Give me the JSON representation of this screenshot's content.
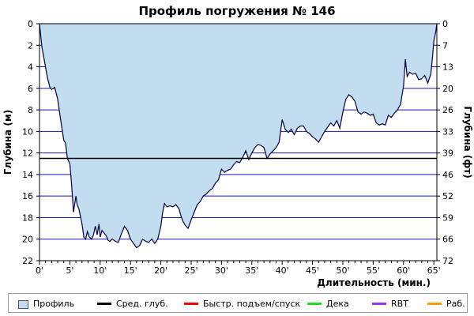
{
  "chart_data": {
    "type": "area",
    "title": "Профиль погружения № 146",
    "xlabel": "Длительность (мин.)",
    "ylabel_left": "Глубина (м)",
    "ylabel_right": "Глубина (фт)",
    "xlim": [
      0,
      65.5
    ],
    "ylim": [
      0,
      22
    ],
    "y_inverted": true,
    "x_ticks": [
      "0'",
      "5'",
      "10'",
      "15'",
      "20'",
      "25'",
      "30'",
      "35'",
      "40'",
      "45'",
      "50'",
      "55'",
      "60'",
      "65'"
    ],
    "x_tick_values": [
      0,
      5,
      10,
      15,
      20,
      25,
      30,
      35,
      40,
      45,
      50,
      55,
      60,
      65
    ],
    "y_ticks_left": [
      "0",
      "2",
      "4",
      "6",
      "8",
      "10",
      "12",
      "14",
      "16",
      "18",
      "20",
      "22"
    ],
    "y_tick_values_left": [
      0,
      2,
      4,
      6,
      8,
      10,
      12,
      14,
      16,
      18,
      20,
      22
    ],
    "y_ticks_right": [
      "0",
      "7",
      "13",
      "20",
      "26",
      "33",
      "39",
      "46",
      "52",
      "59",
      "66",
      "72"
    ],
    "grid": true,
    "fill_color": "#c1ddef",
    "line_color": "#000040",
    "grid_color": "#1515c0",
    "avg_depth": 12.5,
    "avg_depth_color": "#000000",
    "profile": {
      "x": [
        0,
        0.4,
        0.8,
        1.3,
        1.7,
        2.0,
        2.5,
        3.0,
        3.5,
        4.0,
        4.3,
        4.6,
        5.0,
        5.3,
        5.6,
        6.0,
        6.2,
        6.5,
        7.0,
        7.3,
        7.6,
        7.9,
        8.2,
        8.6,
        8.9,
        9.2,
        9.5,
        9.8,
        10.0,
        10.3,
        10.6,
        11.0,
        11.3,
        11.6,
        12.0,
        12.5,
        13.0,
        13.5,
        14.0,
        14.5,
        15.0,
        15.5,
        16.0,
        16.5,
        17.0,
        17.5,
        18.0,
        18.5,
        19.0,
        19.5,
        20.0,
        20.3,
        20.6,
        21.0,
        21.5,
        22.0,
        22.5,
        23.0,
        23.3,
        23.6,
        24.0,
        24.5,
        25.0,
        25.5,
        26.0,
        26.5,
        27.0,
        27.5,
        28.0,
        28.5,
        29.0,
        29.5,
        30.0,
        30.5,
        31.0,
        31.5,
        32.0,
        32.5,
        33.0,
        33.5,
        34.0,
        34.5,
        35.0,
        35.5,
        36.0,
        36.5,
        37.0,
        37.5,
        38.0,
        38.5,
        39.0,
        39.5,
        40.0,
        40.5,
        41.0,
        41.5,
        42.0,
        42.5,
        43.0,
        43.5,
        44.0,
        44.5,
        45.0,
        45.5,
        46.0,
        46.5,
        47.0,
        47.5,
        48.0,
        48.5,
        49.0,
        49.5,
        50.0,
        50.5,
        51.0,
        51.5,
        52.0,
        52.5,
        53.0,
        53.5,
        54.0,
        54.5,
        55.0,
        55.5,
        56.0,
        56.5,
        57.0,
        57.5,
        58.0,
        58.5,
        59.0,
        59.5,
        60.0,
        60.3,
        60.6,
        61.0,
        61.5,
        62.0,
        62.5,
        63.0,
        63.5,
        64.0,
        64.5,
        64.8,
        65.0,
        65.3,
        65.5
      ],
      "y": [
        0,
        2.2,
        3.4,
        5.0,
        5.9,
        6.1,
        5.9,
        7.0,
        9.0,
        10.8,
        11.1,
        12.5,
        13.0,
        15.0,
        17.5,
        16.0,
        16.8,
        17.2,
        18.6,
        19.8,
        20.0,
        19.3,
        19.8,
        20.0,
        19.6,
        18.8,
        19.6,
        18.6,
        19.8,
        19.2,
        19.4,
        19.7,
        20.1,
        20.2,
        20.0,
        20.2,
        20.3,
        19.5,
        18.8,
        19.2,
        20.0,
        20.4,
        20.8,
        20.6,
        20.0,
        20.2,
        20.3,
        20.0,
        20.4,
        20.0,
        18.8,
        17.5,
        16.7,
        17.0,
        16.9,
        17.0,
        16.8,
        17.2,
        17.8,
        18.3,
        18.7,
        19.0,
        18.2,
        17.5,
        16.8,
        16.5,
        16.0,
        15.8,
        15.5,
        15.3,
        14.8,
        14.5,
        13.5,
        13.8,
        13.6,
        13.5,
        13.1,
        12.8,
        12.9,
        12.4,
        11.8,
        12.6,
        12.0,
        11.5,
        11.2,
        11.3,
        11.5,
        12.5,
        12.1,
        11.8,
        11.5,
        11.0,
        8.9,
        9.8,
        10.1,
        9.8,
        10.3,
        9.7,
        9.5,
        9.5,
        10.0,
        10.2,
        10.5,
        10.7,
        11.0,
        10.5,
        10.0,
        9.6,
        9.2,
        9.5,
        9.0,
        9.7,
        8.2,
        7.0,
        6.6,
        6.8,
        7.2,
        8.2,
        8.4,
        8.2,
        8.3,
        8.5,
        8.4,
        9.2,
        9.4,
        9.3,
        9.4,
        8.5,
        8.7,
        8.3,
        8.0,
        7.5,
        5.8,
        3.3,
        4.9,
        4.5,
        4.7,
        4.6,
        5.2,
        5.1,
        4.8,
        5.5,
        4.7,
        3.0,
        1.6,
        0.8,
        0
      ]
    }
  },
  "legend": {
    "items": [
      {
        "label": "Профиль",
        "type": "box",
        "color": "#c1ddef"
      },
      {
        "label": "Сред. глуб.",
        "type": "line",
        "color": "#000000"
      },
      {
        "label": "Быстр. подъем/спуск",
        "type": "line",
        "color": "#ff0000"
      },
      {
        "label": "Дека",
        "type": "line",
        "color": "#22dd22"
      },
      {
        "label": "RBT",
        "type": "line",
        "color": "#9933ff"
      },
      {
        "label": "Раб.",
        "type": "line",
        "color": "#ff9900"
      }
    ]
  }
}
